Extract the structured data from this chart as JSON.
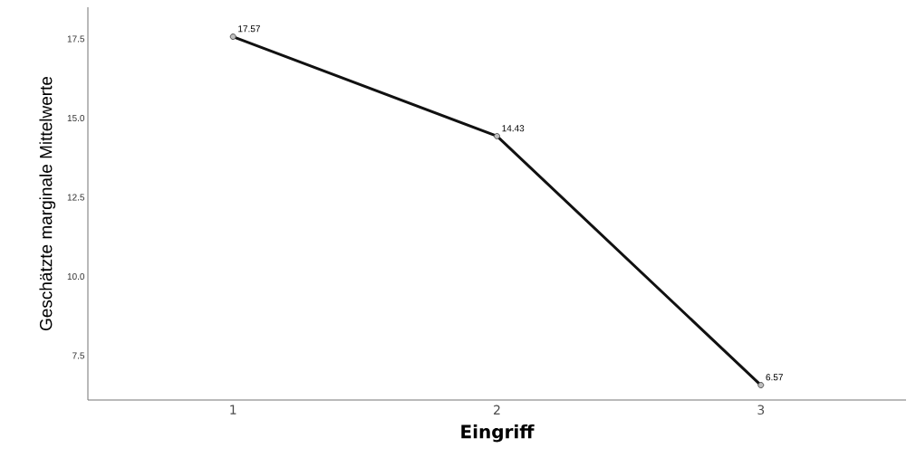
{
  "chart_data": {
    "type": "line",
    "xlabel": "Eingriff",
    "ylabel": "Geschätzte marginale Mittelwerte",
    "categories": [
      "1",
      "2",
      "3"
    ],
    "values": [
      17.57,
      14.43,
      6.57
    ],
    "color": "#111111",
    "ylim": [
      6.1,
      18.5
    ],
    "yticks": [
      7.5,
      {
        "value": 10,
        "label": "10.0"
      },
      12.5,
      {
        "value": 15,
        "label": "15.0"
      },
      17.5
    ],
    "data_labels": true,
    "marker": "circle",
    "line_style": "solid",
    "grid": false
  }
}
